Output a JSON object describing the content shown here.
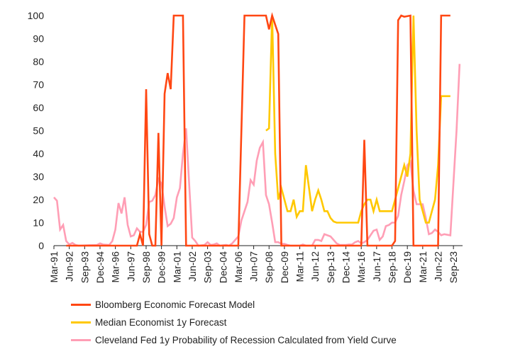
{
  "chart_data": {
    "type": "line",
    "title": "",
    "xlabel": "",
    "ylabel": "",
    "ylim": [
      0,
      100
    ],
    "yticks": [
      0,
      10,
      20,
      30,
      40,
      50,
      60,
      70,
      80,
      90,
      100
    ],
    "xticks": [
      "Mar-91",
      "Jun-92",
      "Sep-93",
      "Dec-94",
      "Mar-96",
      "Jun-97",
      "Sep-98",
      "Dec-99",
      "Mar-01",
      "Jun-02",
      "Sep-03",
      "Dec-04",
      "Mar-06",
      "Jun-07",
      "Sep-08",
      "Dec-09",
      "Mar-11",
      "Jun-12",
      "Sep-13",
      "Dec-14",
      "Mar-16",
      "Jun-17",
      "Sep-18",
      "Dec-19",
      "Mar-21",
      "Jun-22",
      "Sep-23"
    ],
    "grid": false,
    "legend_position": "bottom",
    "series": [
      {
        "name": "Bloomberg Economic Forecast Model",
        "color": "#ff4713",
        "points": [
          [
            "1992-03",
            0
          ],
          [
            "1997-12",
            0
          ],
          [
            "1998-03",
            5
          ],
          [
            "1998-06",
            0
          ],
          [
            "1998-09",
            68
          ],
          [
            "1998-12",
            5
          ],
          [
            "1999-03",
            0
          ],
          [
            "1999-06",
            0
          ],
          [
            "1999-09",
            49
          ],
          [
            "1999-12",
            0
          ],
          [
            "2000-03",
            66
          ],
          [
            "2000-06",
            75
          ],
          [
            "2000-09",
            68
          ],
          [
            "2000-12",
            100
          ],
          [
            "2001-09",
            100
          ],
          [
            "2001-12",
            0
          ],
          [
            "2006-03",
            0
          ],
          [
            "2006-09",
            100
          ],
          [
            "2008-06",
            100
          ],
          [
            "2008-09",
            94
          ],
          [
            "2008-12",
            100
          ],
          [
            "2009-06",
            92
          ],
          [
            "2009-09",
            0
          ],
          [
            "2016-03",
            0
          ],
          [
            "2016-06",
            46
          ],
          [
            "2016-09",
            0
          ],
          [
            "2018-09",
            0
          ],
          [
            "2018-12",
            2
          ],
          [
            "2019-03",
            98
          ],
          [
            "2019-06",
            100
          ],
          [
            "2019-09",
            99.5
          ],
          [
            "2020-03",
            100
          ],
          [
            "2020-06",
            0
          ],
          [
            "2022-06",
            0
          ],
          [
            "2022-09",
            100
          ],
          [
            "2023-06",
            100
          ]
        ]
      },
      {
        "name": "Median Economist 1y Forecast",
        "color": "#ffc800",
        "points": [
          [
            "2008-06",
            50
          ],
          [
            "2008-09",
            51
          ],
          [
            "2008-12",
            100
          ],
          [
            "2009-03",
            40
          ],
          [
            "2009-06",
            20
          ],
          [
            "2009-09",
            25
          ],
          [
            "2009-12",
            20
          ],
          [
            "2010-03",
            15
          ],
          [
            "2010-06",
            15
          ],
          [
            "2010-09",
            20
          ],
          [
            "2010-12",
            12.5
          ],
          [
            "2011-03",
            15
          ],
          [
            "2011-06",
            15
          ],
          [
            "2011-09",
            35
          ],
          [
            "2011-12",
            25
          ],
          [
            "2012-03",
            15
          ],
          [
            "2012-06",
            20
          ],
          [
            "2012-09",
            24
          ],
          [
            "2012-12",
            20
          ],
          [
            "2013-03",
            15
          ],
          [
            "2013-06",
            15
          ],
          [
            "2013-09",
            12
          ],
          [
            "2013-12",
            10.5
          ],
          [
            "2014-03",
            10
          ],
          [
            "2015-12",
            10
          ],
          [
            "2016-03",
            15
          ],
          [
            "2016-06",
            18
          ],
          [
            "2016-09",
            20
          ],
          [
            "2016-12",
            20
          ],
          [
            "2017-03",
            15
          ],
          [
            "2017-06",
            20
          ],
          [
            "2017-09",
            15
          ],
          [
            "2018-09",
            15
          ],
          [
            "2018-12",
            20
          ],
          [
            "2019-03",
            25
          ],
          [
            "2019-06",
            30
          ],
          [
            "2019-09",
            35
          ],
          [
            "2019-12",
            30
          ],
          [
            "2020-03",
            40
          ],
          [
            "2020-06",
            100
          ],
          [
            "2020-09",
            50
          ],
          [
            "2020-12",
            20
          ],
          [
            "2021-03",
            15
          ],
          [
            "2021-06",
            10
          ],
          [
            "2021-09",
            10
          ],
          [
            "2021-12",
            15
          ],
          [
            "2022-03",
            20
          ],
          [
            "2022-06",
            35
          ],
          [
            "2022-09",
            65
          ],
          [
            "2023-06",
            65
          ]
        ]
      },
      {
        "name": "Cleveland Fed 1y Probability of Recession Calculated from Yield Curve",
        "color": "#ff9eb5",
        "points": [
          [
            "1991-03",
            21
          ],
          [
            "1991-06",
            19.5
          ],
          [
            "1991-09",
            7
          ],
          [
            "1991-12",
            9
          ],
          [
            "1992-03",
            2
          ],
          [
            "1992-06",
            0.5
          ],
          [
            "1992-09",
            1.2
          ],
          [
            "1992-12",
            0.3
          ],
          [
            "1993-03",
            0
          ],
          [
            "1994-09",
            0.3
          ],
          [
            "1994-12",
            1
          ],
          [
            "1995-03",
            0.5
          ],
          [
            "1995-09",
            0.3
          ],
          [
            "1995-12",
            2
          ],
          [
            "1996-03",
            7
          ],
          [
            "1996-06",
            18.5
          ],
          [
            "1996-09",
            14
          ],
          [
            "1996-12",
            21
          ],
          [
            "1997-03",
            9
          ],
          [
            "1997-06",
            4
          ],
          [
            "1997-09",
            4.5
          ],
          [
            "1997-12",
            7.5
          ],
          [
            "1998-03",
            6
          ],
          [
            "1998-06",
            6
          ],
          [
            "1998-09",
            9
          ],
          [
            "1998-12",
            19
          ],
          [
            "1999-03",
            19.5
          ],
          [
            "1999-06",
            22
          ],
          [
            "1999-09",
            29
          ],
          [
            "1999-12",
            27
          ],
          [
            "2000-03",
            17
          ],
          [
            "2000-06",
            8.5
          ],
          [
            "2000-09",
            9.5
          ],
          [
            "2000-12",
            12
          ],
          [
            "2001-03",
            21
          ],
          [
            "2001-06",
            25
          ],
          [
            "2001-09",
            40
          ],
          [
            "2001-12",
            51
          ],
          [
            "2002-03",
            27
          ],
          [
            "2002-06",
            3.5
          ],
          [
            "2002-09",
            2
          ],
          [
            "2002-12",
            0
          ],
          [
            "2003-06",
            0.3
          ],
          [
            "2003-09",
            1.5
          ],
          [
            "2003-12",
            0.3
          ],
          [
            "2004-03",
            0.5
          ],
          [
            "2004-06",
            1
          ],
          [
            "2004-09",
            0
          ],
          [
            "2005-03",
            0.3
          ],
          [
            "2005-06",
            0
          ],
          [
            "2005-09",
            1
          ],
          [
            "2005-12",
            2.5
          ],
          [
            "2006-03",
            4
          ],
          [
            "2006-06",
            11
          ],
          [
            "2006-09",
            15
          ],
          [
            "2006-12",
            19
          ],
          [
            "2007-03",
            28.5
          ],
          [
            "2007-06",
            26.5
          ],
          [
            "2007-09",
            37
          ],
          [
            "2007-12",
            42.5
          ],
          [
            "2008-03",
            45
          ],
          [
            "2008-06",
            22
          ],
          [
            "2008-09",
            18
          ],
          [
            "2008-12",
            10
          ],
          [
            "2009-03",
            1.5
          ],
          [
            "2009-06",
            1.5
          ],
          [
            "2009-09",
            0.8
          ],
          [
            "2009-12",
            0.8
          ],
          [
            "2010-03",
            0.3
          ],
          [
            "2010-06",
            0
          ],
          [
            "2011-03",
            0
          ],
          [
            "2011-06",
            0.5
          ],
          [
            "2011-09",
            0
          ],
          [
            "2012-03",
            0
          ],
          [
            "2012-06",
            2.5
          ],
          [
            "2012-09",
            2.5
          ],
          [
            "2012-12",
            2
          ],
          [
            "2013-03",
            5
          ],
          [
            "2013-06",
            4.5
          ],
          [
            "2013-09",
            4
          ],
          [
            "2013-12",
            2.5
          ],
          [
            "2014-03",
            1
          ],
          [
            "2014-06",
            0.3
          ],
          [
            "2014-12",
            0.3
          ],
          [
            "2015-03",
            0.5
          ],
          [
            "2015-06",
            0.5
          ],
          [
            "2015-09",
            1.5
          ],
          [
            "2015-12",
            2
          ],
          [
            "2016-03",
            1
          ],
          [
            "2016-06",
            1.5
          ],
          [
            "2016-09",
            2.5
          ],
          [
            "2016-12",
            4.5
          ],
          [
            "2017-03",
            6.5
          ],
          [
            "2017-06",
            7
          ],
          [
            "2017-09",
            2.5
          ],
          [
            "2017-12",
            4
          ],
          [
            "2018-03",
            8.5
          ],
          [
            "2018-06",
            9
          ],
          [
            "2018-09",
            10
          ],
          [
            "2018-12",
            10
          ],
          [
            "2019-03",
            13
          ],
          [
            "2019-06",
            22
          ],
          [
            "2019-09",
            28
          ],
          [
            "2019-12",
            35
          ],
          [
            "2020-03",
            36.5
          ],
          [
            "2020-06",
            24
          ],
          [
            "2020-09",
            18
          ],
          [
            "2020-12",
            18
          ],
          [
            "2021-03",
            18
          ],
          [
            "2021-06",
            12
          ],
          [
            "2021-09",
            5
          ],
          [
            "2021-12",
            5.5
          ],
          [
            "2022-03",
            7
          ],
          [
            "2022-06",
            6
          ],
          [
            "2022-09",
            4.5
          ],
          [
            "2022-12",
            5
          ],
          [
            "2023-06",
            4.5
          ],
          [
            "2023-12",
            50
          ],
          [
            "2024-03",
            79
          ]
        ]
      }
    ]
  }
}
